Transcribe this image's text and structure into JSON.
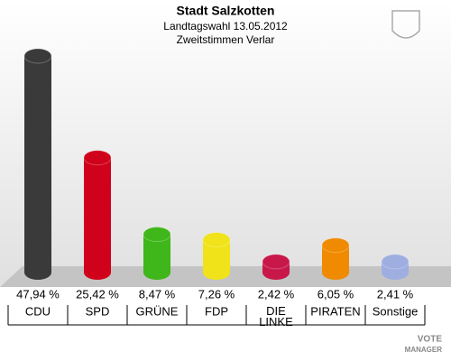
{
  "chart_data": {
    "type": "bar",
    "title": "Stadt Salzkotten",
    "subtitle": "Landtagswahl 13.05.2012",
    "subtitle2": "Zweitstimmen Verlar",
    "categories": [
      "CDU",
      "SPD",
      "GRÜNE",
      "FDP",
      "DIE LINKE",
      "PIRATEN",
      "Sonstige"
    ],
    "values": [
      47.94,
      25.42,
      8.47,
      7.26,
      2.42,
      6.05,
      2.41
    ],
    "value_labels": [
      "47,94 %",
      "25,42 %",
      "8,47 %",
      "7,26 %",
      "2,42 %",
      "6,05 %",
      "2,41 %"
    ],
    "colors": [
      "#3a3a3a",
      "#d0021b",
      "#3fb619",
      "#f0e31a",
      "#c8184a",
      "#f08a00",
      "#9eaee0"
    ],
    "watermark": [
      "VOTE",
      "MANAGER"
    ]
  }
}
